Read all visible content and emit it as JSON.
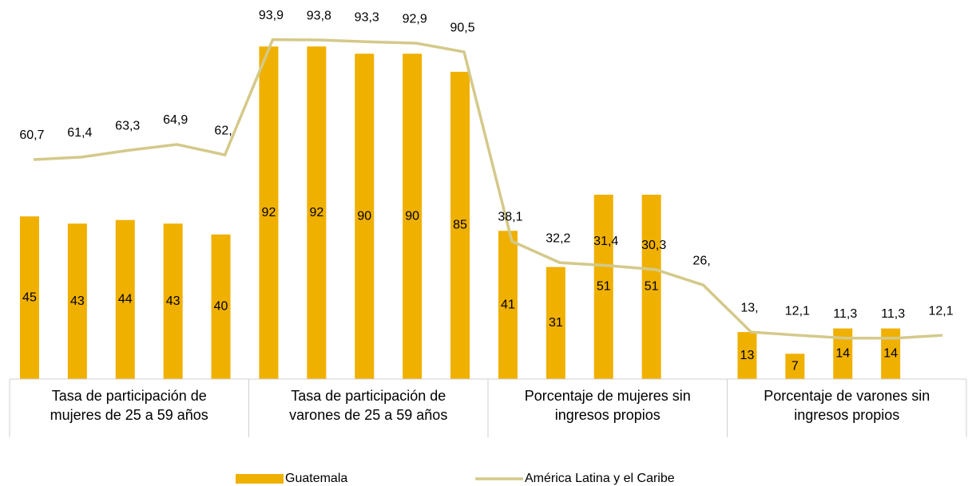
{
  "chart_data": {
    "type": "bar",
    "categories": [
      null,
      null,
      null,
      null,
      null,
      null,
      null,
      null,
      null,
      null,
      null,
      null,
      null,
      null,
      null,
      null,
      null,
      null,
      null,
      null
    ],
    "groups": [
      "Tasa de participación de mujeres de 25 a 59 años",
      "Tasa de participación de varones de 25 a 59 años",
      "Porcentaje de mujeres sin ingresos propios",
      "Porcentaje de varones sin ingresos propios"
    ],
    "ylim": [
      0,
      100
    ],
    "series": [
      {
        "name": "Guatemala",
        "type": "bar",
        "color": "#f0b000",
        "values": [
          45,
          43,
          44,
          43,
          40,
          92,
          92,
          90,
          90,
          85,
          41,
          31,
          51,
          51,
          null,
          13,
          7,
          14,
          14,
          null
        ]
      },
      {
        "name": "América Latina y el Caribe",
        "type": "line",
        "color": "#d4c98a",
        "values": [
          60.7,
          61.4,
          63.3,
          64.9,
          62,
          93.9,
          93.8,
          93.3,
          92.9,
          90.5,
          38.1,
          32.2,
          31.4,
          30.3,
          26,
          13,
          12.1,
          11.3,
          11.3,
          12.1
        ],
        "value_labels": [
          "60,7",
          "61,4",
          "63,3",
          "64,9",
          "62,",
          "93,9",
          "93,8",
          "93,3",
          "92,9",
          "90,5",
          "38,1",
          "32,2",
          "31,4",
          "30,3",
          "26,",
          "13,",
          "12,1",
          "11,3",
          "11,3",
          "12,1"
        ]
      }
    ],
    "legend": "bottom"
  }
}
